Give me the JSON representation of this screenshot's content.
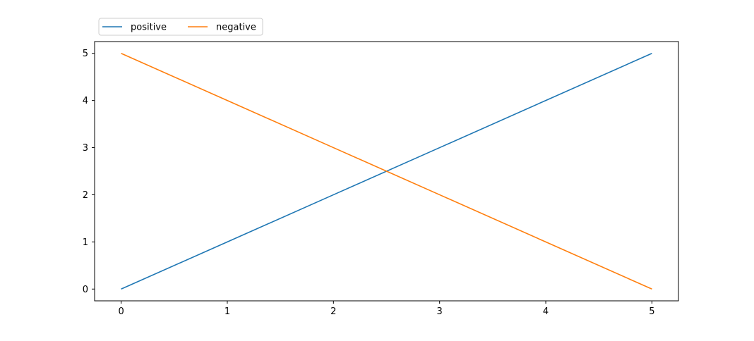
{
  "chart_data": {
    "type": "line",
    "title": "",
    "xlabel": "",
    "ylabel": "",
    "xlim": [
      -0.25,
      5.25
    ],
    "ylim": [
      -0.25,
      5.25
    ],
    "xticks": [
      0,
      1,
      2,
      3,
      4,
      5
    ],
    "yticks": [
      0,
      1,
      2,
      3,
      4,
      5
    ],
    "grid": false,
    "legend_placement": "top-left-outside",
    "legend_columns": 2,
    "series": [
      {
        "name": "positive",
        "color": "#1f77b4",
        "x": [
          0,
          1,
          2,
          3,
          4,
          5
        ],
        "y": [
          0,
          1,
          2,
          3,
          4,
          5
        ]
      },
      {
        "name": "negative",
        "color": "#ff7f0e",
        "x": [
          0,
          1,
          2,
          3,
          4,
          5
        ],
        "y": [
          5,
          4,
          3,
          2,
          1,
          0
        ]
      }
    ]
  }
}
